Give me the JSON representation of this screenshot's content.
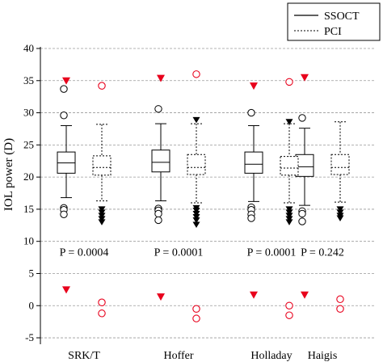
{
  "chart_data": {
    "type": "box",
    "ylabel": "IOL power (D)",
    "xlabel": "",
    "title": "",
    "ylim": [
      -6,
      40
    ],
    "yticks": [
      -5,
      0,
      5,
      10,
      15,
      20,
      25,
      30,
      35,
      40
    ],
    "grid": "horizontal dashed at each y tick",
    "legend_position": "top-right",
    "legend": [
      {
        "label": "SSOCT",
        "line_style": "solid"
      },
      {
        "label": "PCI",
        "line_style": "dashed"
      }
    ],
    "categories": [
      "SRK/T",
      "Hoffer",
      "Holladay",
      "Haigis"
    ],
    "p_values": [
      "P = 0.0004",
      "P = 0.0001",
      "P = 0.0001",
      "P = 0.242"
    ],
    "series": [
      {
        "name": "SSOCT",
        "line_style": "solid",
        "boxes": [
          {
            "whisker_low": 16.8,
            "q1": 20.6,
            "median": 22.2,
            "q3": 23.9,
            "whisker_high": 28.0,
            "outliers_low": [
              15.2,
              14.9,
              14.2
            ],
            "outliers_high": [
              29.6,
              33.7
            ]
          },
          {
            "whisker_low": 16.3,
            "q1": 20.8,
            "median": 22.3,
            "q3": 24.2,
            "whisker_high": 28.3,
            "outliers_low": [
              15.1,
              14.8,
              14.3,
              13.3
            ],
            "outliers_high": [
              30.6
            ]
          },
          {
            "whisker_low": 16.2,
            "q1": 20.6,
            "median": 22.0,
            "q3": 23.9,
            "whisker_high": 28.0,
            "outliers_low": [
              15.3,
              14.9,
              14.2,
              13.6
            ],
            "outliers_high": [
              30.0
            ]
          },
          {
            "whisker_low": 15.6,
            "q1": 20.1,
            "median": 21.6,
            "q3": 23.5,
            "whisker_high": 27.6,
            "outliers_low": [
              14.7,
              14.3,
              13.1
            ],
            "outliers_high": [
              29.2
            ]
          }
        ]
      },
      {
        "name": "PCI",
        "line_style": "dashed",
        "boxes": [
          {
            "whisker_low": 16.3,
            "q1": 20.3,
            "median": 21.5,
            "q3": 23.3,
            "whisker_high": 28.2,
            "outliers_low": [
              15.0,
              14.5,
              14.0,
              13.5,
              13.0
            ],
            "outliers_high": []
          },
          {
            "whisker_low": 16.0,
            "q1": 20.4,
            "median": 21.5,
            "q3": 23.5,
            "whisker_high": 28.3,
            "outliers_low": [
              15.2,
              14.8,
              14.3,
              13.8,
              13.3,
              12.6
            ],
            "outliers_high": [
              28.9
            ]
          },
          {
            "whisker_low": 16.0,
            "q1": 20.3,
            "median": 21.4,
            "q3": 23.2,
            "whisker_high": 28.3,
            "outliers_low": [
              15.0,
              14.5,
              14.0,
              13.5,
              13.0
            ],
            "outliers_high": [
              28.6
            ]
          },
          {
            "whisker_low": 16.1,
            "q1": 20.4,
            "median": 21.5,
            "q3": 23.5,
            "whisker_high": 28.6,
            "outliers_low": [
              15.0,
              14.5,
              14.0,
              13.6
            ],
            "outliers_high": []
          }
        ]
      }
    ],
    "red_markers": [
      {
        "category": "SRK/T",
        "SSOCT_triangles": [
          35.0,
          2.5
        ],
        "PCI_circles": [
          34.2,
          0.5,
          -1.2
        ]
      },
      {
        "category": "Hoffer",
        "SSOCT_triangles": [
          35.4,
          1.4
        ],
        "PCI_circles": [
          36.0,
          -0.5,
          -2.0
        ]
      },
      {
        "category": "Holladay",
        "SSOCT_triangles": [
          34.2,
          1.7
        ],
        "PCI_circles": [
          34.8,
          0.0,
          -1.5
        ]
      },
      {
        "category": "Haigis",
        "SSOCT_triangles": [
          35.5,
          1.7
        ],
        "PCI_circles": [
          1.0,
          -0.5
        ]
      }
    ],
    "colors": {
      "axis": "#000000",
      "grid": "#9a9a9a",
      "marker_red": "#e8001c",
      "box_fill": "#ffffff"
    }
  }
}
